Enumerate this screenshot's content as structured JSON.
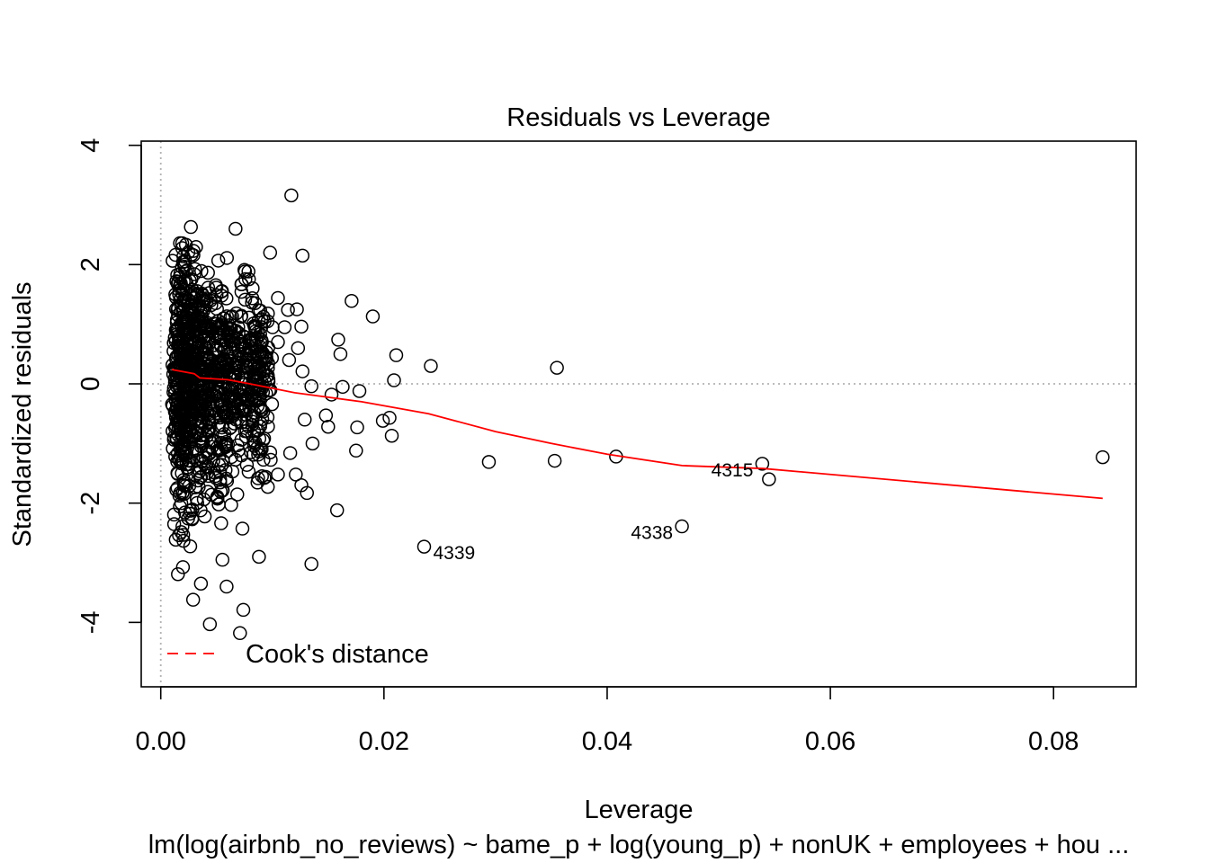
{
  "chart_data": {
    "type": "scatter",
    "title": "Residuals vs Leverage",
    "xlabel": "Leverage",
    "ylabel": "Standardized residuals",
    "subtitle": "lm(log(airbnb_no_reviews) ~ bame_p + log(young_p) + nonUK + employees + hou ...",
    "xlim": [
      -0.00175,
      0.0874
    ],
    "ylim": [
      -5.08,
      4.07
    ],
    "x_ticks": [
      0,
      0.02,
      0.04,
      0.06,
      0.08
    ],
    "x_tick_labels": [
      "0.00",
      "0.02",
      "0.04",
      "0.06",
      "0.08"
    ],
    "y_ticks": [
      -4,
      -2,
      0,
      2,
      4
    ],
    "y_tick_labels": [
      "-4",
      "-2",
      "0",
      "2",
      "4"
    ],
    "reference_lines": {
      "x": 0,
      "y": 0,
      "color": "#bbbbbb",
      "style": "dotted"
    },
    "colors": {
      "points": "#000000",
      "smooth": "#ff0000",
      "cooks": "#ff0000"
    },
    "legend": {
      "position": "bottom-left",
      "label": "Cook's distance",
      "line_style": "dashed"
    },
    "labeled_points": [
      {
        "x": 0.0236,
        "y": -2.73,
        "label": "4339",
        "side": "right"
      },
      {
        "x": 0.0467,
        "y": -2.39,
        "label": "4338",
        "side": "left"
      },
      {
        "x": 0.0539,
        "y": -1.34,
        "label": "4315",
        "side": "left"
      }
    ],
    "outlier_points": [
      [
        0.0117,
        3.16
      ],
      [
        0.0127,
        2.15
      ],
      [
        0.0098,
        2.2
      ],
      [
        0.0067,
        2.6
      ],
      [
        0.0027,
        2.63
      ],
      [
        0.0105,
        1.44
      ],
      [
        0.0171,
        1.39
      ],
      [
        0.019,
        1.13
      ],
      [
        0.0114,
        1.24
      ],
      [
        0.0122,
        1.25
      ],
      [
        0.0126,
        0.96
      ],
      [
        0.0159,
        0.74
      ],
      [
        0.0161,
        0.5
      ],
      [
        0.0211,
        0.48
      ],
      [
        0.0242,
        0.3
      ],
      [
        0.0355,
        0.27
      ],
      [
        0.0209,
        0.06
      ],
      [
        0.0163,
        -0.05
      ],
      [
        0.0178,
        -0.12
      ],
      [
        0.0135,
        -0.04
      ],
      [
        0.0153,
        -0.18
      ],
      [
        0.0199,
        -0.62
      ],
      [
        0.0205,
        -0.57
      ],
      [
        0.0207,
        -0.87
      ],
      [
        0.0176,
        -0.73
      ],
      [
        0.0175,
        -1.12
      ],
      [
        0.0148,
        -0.53
      ],
      [
        0.015,
        -0.72
      ],
      [
        0.0136,
        -1.0
      ],
      [
        0.0129,
        -0.6
      ],
      [
        0.0116,
        -1.16
      ],
      [
        0.0121,
        -1.52
      ],
      [
        0.0126,
        -1.7
      ],
      [
        0.0131,
        -1.83
      ],
      [
        0.0158,
        -2.12
      ],
      [
        0.0135,
        -3.02
      ],
      [
        0.0294,
        -1.31
      ],
      [
        0.0353,
        -1.29
      ],
      [
        0.0408,
        -1.22
      ],
      [
        0.0545,
        -1.6
      ],
      [
        0.0844,
        -1.23
      ],
      [
        0.0088,
        -2.9
      ],
      [
        0.0044,
        -4.03
      ],
      [
        0.0071,
        -4.18
      ],
      [
        0.0074,
        -3.79
      ],
      [
        0.0029,
        -3.62
      ],
      [
        0.0059,
        -3.4
      ],
      [
        0.0036,
        -3.35
      ],
      [
        0.0105,
        -1.52
      ],
      [
        0.0094,
        -1.56
      ],
      [
        0.0115,
        0.4
      ],
      [
        0.0127,
        0.21
      ],
      [
        0.0105,
        0.7
      ],
      [
        0.0111,
        0.95
      ],
      [
        0.0123,
        0.6
      ]
    ],
    "cluster": {
      "x_range": [
        0.001,
        0.0105
      ],
      "x_peak": 0.0035,
      "y_mean": 0,
      "y_sd": 0.95,
      "count": 1100
    },
    "smooth_line": {
      "x": [
        0.001,
        0.003,
        0.0035,
        0.006,
        0.008,
        0.012,
        0.018,
        0.024,
        0.03,
        0.035,
        0.04,
        0.0467,
        0.054,
        0.0844
      ],
      "y": [
        0.24,
        0.17,
        0.1,
        0.07,
        0.0,
        -0.15,
        -0.3,
        -0.5,
        -0.8,
        -1.0,
        -1.18,
        -1.37,
        -1.42,
        -1.92
      ]
    }
  }
}
